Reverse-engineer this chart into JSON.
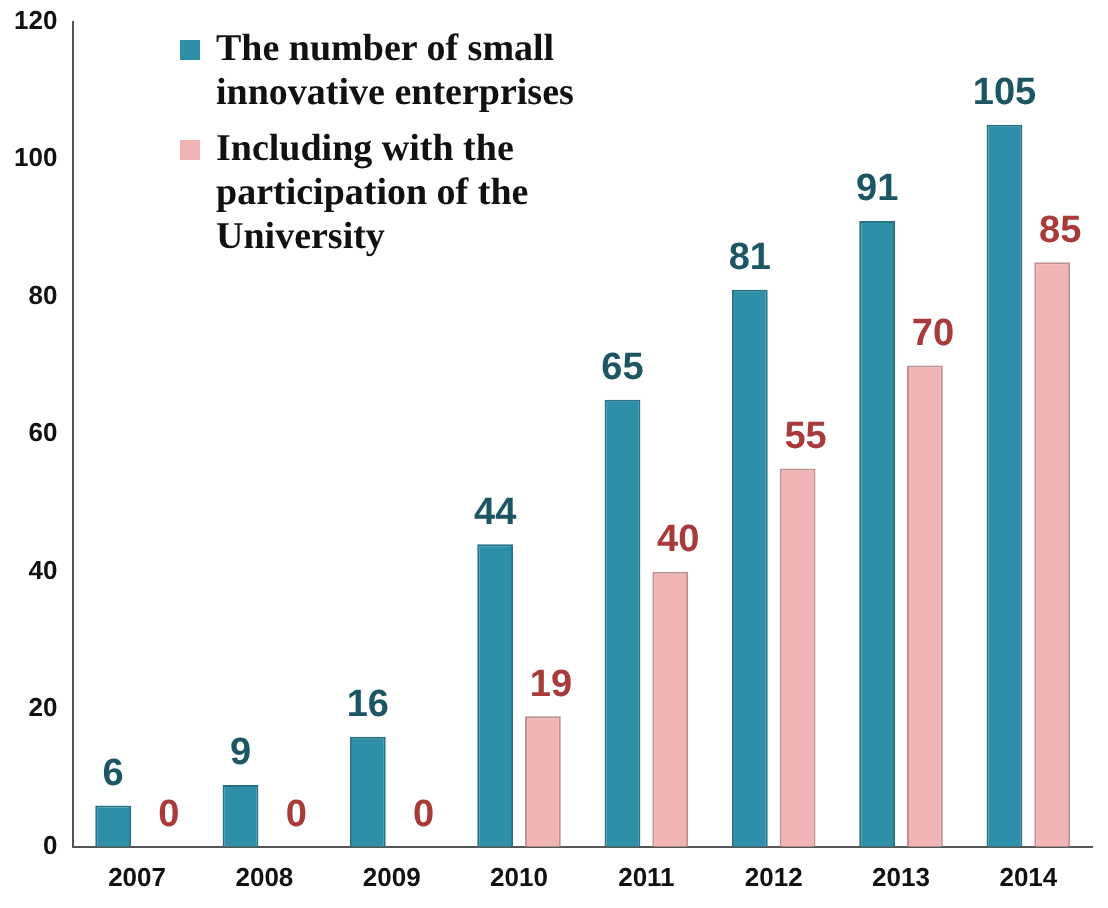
{
  "chart_data": {
    "type": "bar",
    "categories": [
      "2007",
      "2008",
      "2009",
      "2010",
      "2011",
      "2012",
      "2013",
      "2014"
    ],
    "series": [
      {
        "name": "The number of small innovative enterprises",
        "color": "#2e8fa8",
        "values": [
          6,
          9,
          16,
          44,
          65,
          81,
          91,
          105
        ]
      },
      {
        "name": "Including with the participation of the University",
        "color": "#f0b4b4",
        "values": [
          0,
          0,
          0,
          19,
          40,
          55,
          70,
          85
        ]
      }
    ],
    "ylim": [
      0,
      120
    ],
    "yticks": [
      0,
      20,
      40,
      60,
      80,
      100,
      120
    ],
    "grid": false,
    "legend": "top left",
    "data_labels": true
  }
}
